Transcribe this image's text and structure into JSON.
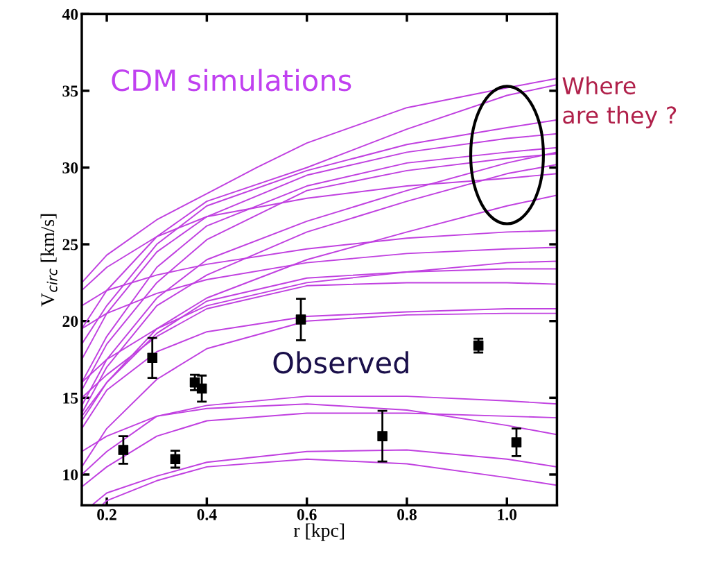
{
  "chart_data": {
    "type": "line",
    "xlabel": "r [kpc]",
    "ylabel": "V$_{circ}$ [km/s]",
    "xlim": [
      0.15,
      1.1
    ],
    "ylim": [
      8,
      40
    ],
    "xticks": [
      {
        "value": 0.2,
        "label": "0.2"
      },
      {
        "value": 0.4,
        "label": "0.4"
      },
      {
        "value": 0.6,
        "label": "0.6"
      },
      {
        "value": 0.8,
        "label": "0.8"
      },
      {
        "value": 1.0,
        "label": "1.0"
      }
    ],
    "yticks": [
      10,
      15,
      20,
      25,
      30,
      35,
      40
    ],
    "grid": false,
    "legend": false,
    "annotations": [
      "CDM simulations",
      "Observed",
      "Where\nare they ?"
    ],
    "series": [
      {
        "color": "#c040e0",
        "x": [
          0.15,
          0.2,
          0.3,
          0.4,
          0.5,
          0.6,
          0.8,
          1.0,
          1.1
        ],
        "values": [
          22.5,
          24.3,
          26.6,
          28.3,
          30.0,
          31.6,
          33.9,
          35.2,
          35.8
        ]
      },
      {
        "color": "#c040e0",
        "x": [
          0.15,
          0.2,
          0.3,
          0.4,
          0.6,
          0.8,
          1.0,
          1.1
        ],
        "values": [
          19.5,
          22,
          25.5,
          27.8,
          30.0,
          32.5,
          34.7,
          35.4
        ]
      },
      {
        "color": "#c040e0",
        "x": [
          0.15,
          0.2,
          0.3,
          0.4,
          0.6,
          0.8,
          1.0,
          1.1
        ],
        "values": [
          18.5,
          21,
          25,
          27.5,
          29.8,
          31.5,
          32.6,
          33.1
        ]
      },
      {
        "color": "#c040e0",
        "x": [
          0.15,
          0.2,
          0.3,
          0.4,
          0.6,
          0.8,
          1.0,
          1.1
        ],
        "values": [
          17.5,
          20.5,
          24.5,
          26.8,
          29.5,
          31.0,
          31.9,
          32.2
        ]
      },
      {
        "color": "#c040e0",
        "x": [
          0.15,
          0.2,
          0.3,
          0.4,
          0.6,
          0.8,
          1.0,
          1.1
        ],
        "values": [
          16,
          19,
          23.5,
          26.2,
          28.8,
          30.3,
          31.0,
          31.3
        ]
      },
      {
        "color": "#c040e0",
        "x": [
          0.15,
          0.2,
          0.3,
          0.4,
          0.6,
          0.8,
          1.0,
          1.1
        ],
        "values": [
          15.5,
          18.5,
          22.5,
          25.3,
          28.5,
          29.8,
          30.6,
          30.9
        ]
      },
      {
        "color": "#c040e0",
        "x": [
          0.15,
          0.2,
          0.3,
          0.4,
          0.6,
          0.8,
          1.0,
          1.1
        ],
        "values": [
          14.5,
          17.5,
          21.5,
          24,
          26.5,
          28.5,
          30.3,
          31.0
        ]
      },
      {
        "color": "#c040e0",
        "x": [
          0.15,
          0.2,
          0.3,
          0.4,
          0.6,
          0.8,
          1.0,
          1.1
        ],
        "values": [
          14,
          17,
          21,
          23,
          25.8,
          27.8,
          29.6,
          30.2
        ]
      },
      {
        "color": "#c040e0",
        "x": [
          0.15,
          0.2,
          0.3,
          0.4,
          0.6,
          0.8,
          1.0,
          1.1
        ],
        "values": [
          13.5,
          16,
          19.5,
          21.5,
          24,
          25.8,
          27.5,
          28.2
        ]
      },
      {
        "color": "#c040e0",
        "x": [
          0.15,
          0.2,
          0.3,
          0.4,
          0.6,
          0.8,
          1.0,
          1.1
        ],
        "values": [
          22,
          23.5,
          25.5,
          26.8,
          28,
          28.8,
          29.3,
          29.6
        ]
      },
      {
        "color": "#c040e0",
        "x": [
          0.15,
          0.2,
          0.3,
          0.4,
          0.6,
          0.8,
          1.0,
          1.1
        ],
        "values": [
          21,
          22,
          23,
          23.7,
          24.7,
          25.4,
          25.8,
          25.9
        ]
      },
      {
        "color": "#c040e0",
        "x": [
          0.15,
          0.2,
          0.3,
          0.4,
          0.6,
          0.8,
          1.0,
          1.1
        ],
        "values": [
          19.5,
          20.5,
          21.8,
          22.7,
          23.8,
          24.4,
          24.7,
          24.8
        ]
      },
      {
        "color": "#c040e0",
        "x": [
          0.15,
          0.2,
          0.3,
          0.4,
          0.6,
          0.8,
          1.0,
          1.1
        ],
        "values": [
          16,
          17.5,
          19.5,
          21,
          22.5,
          23.2,
          23.8,
          23.9
        ]
      },
      {
        "color": "#c040e0",
        "x": [
          0.15,
          0.2,
          0.3,
          0.4,
          0.6,
          0.8,
          1.0,
          1.1
        ],
        "values": [
          13.8,
          16,
          19.2,
          21.3,
          22.8,
          23.2,
          23.4,
          23.4
        ]
      },
      {
        "color": "#c040e0",
        "x": [
          0.15,
          0.2,
          0.3,
          0.4,
          0.6,
          0.8,
          1.0,
          1.1
        ],
        "values": [
          15,
          16.5,
          19,
          20.8,
          22.3,
          22.5,
          22.5,
          22.4
        ]
      },
      {
        "color": "#c040e0",
        "x": [
          0.15,
          0.2,
          0.3,
          0.4,
          0.6,
          0.8,
          1.0,
          1.1
        ],
        "values": [
          13,
          15.5,
          18,
          19.3,
          20.3,
          20.6,
          20.8,
          20.8
        ]
      },
      {
        "color": "#c040e0",
        "x": [
          0.15,
          0.2,
          0.3,
          0.4,
          0.6,
          0.8,
          1.0,
          1.1
        ],
        "values": [
          10.5,
          13,
          16.2,
          18.2,
          20,
          20.4,
          20.5,
          20.5
        ]
      },
      {
        "color": "#c040e0",
        "x": [
          0.15,
          0.2,
          0.3,
          0.4,
          0.6,
          0.8,
          1.0,
          1.1
        ],
        "values": [
          10.0,
          11.5,
          13.8,
          14.5,
          15.1,
          15.1,
          14.8,
          14.6
        ]
      },
      {
        "color": "#c040e0",
        "x": [
          0.15,
          0.2,
          0.3,
          0.4,
          0.6,
          0.8,
          1.0,
          1.1
        ],
        "values": [
          9.2,
          10.5,
          12.5,
          13.5,
          14.0,
          14.0,
          13.8,
          13.7
        ]
      },
      {
        "color": "#c040e0",
        "x": [
          0.15,
          0.2,
          0.3,
          0.4,
          0.6,
          0.8,
          1.0,
          1.1
        ],
        "values": [
          11.5,
          12.5,
          13.8,
          14.3,
          14.6,
          14.2,
          13.2,
          12.6
        ]
      },
      {
        "color": "#c040e0",
        "x": [
          0.17,
          0.2,
          0.3,
          0.4,
          0.6,
          0.8,
          1.0,
          1.1
        ],
        "values": [
          8,
          8.8,
          9.9,
          10.8,
          11.5,
          11.6,
          11.0,
          10.5
        ]
      },
      {
        "color": "#c040e0",
        "x": [
          0.19,
          0.2,
          0.3,
          0.4,
          0.6,
          0.8,
          1.0,
          1.1
        ],
        "values": [
          8,
          8.3,
          9.6,
          10.5,
          11.0,
          10.7,
          9.8,
          9.3
        ]
      },
      {
        "type": "scatter",
        "color": "#000000",
        "marker": "square",
        "x": [
          0.233,
          0.291,
          0.337,
          0.376,
          0.39,
          0.588,
          0.751,
          0.943,
          1.019
        ],
        "values": [
          11.6,
          17.6,
          11.0,
          16.0,
          15.6,
          20.1,
          12.5,
          18.4,
          12.1
        ],
        "errors": [
          0.9,
          1.3,
          0.55,
          0.5,
          0.85,
          1.35,
          1.65,
          0.45,
          0.9
        ]
      }
    ]
  }
}
